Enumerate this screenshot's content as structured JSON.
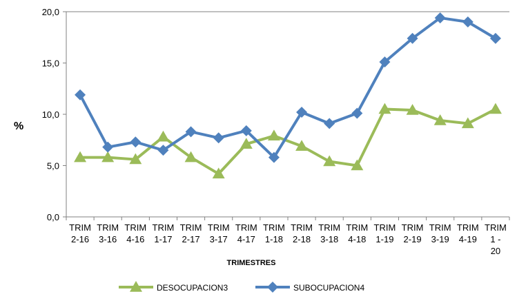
{
  "chart_data": {
    "type": "line",
    "title": "",
    "xlabel": "TRIMESTRES",
    "ylabel": "%",
    "ylim": [
      0,
      20
    ],
    "yticks": [
      "0,0",
      "5,0",
      "10,0",
      "15,0",
      "20,0"
    ],
    "grid": false,
    "legend_position": "bottom",
    "categories": [
      [
        "TRIM",
        "2-16"
      ],
      [
        "TRIM",
        "3-16"
      ],
      [
        "TRIM",
        "4-16"
      ],
      [
        "TRIM",
        "1-17"
      ],
      [
        "TRIM",
        "2-17"
      ],
      [
        "TRIM",
        "3-17"
      ],
      [
        "TRIM",
        "4-17"
      ],
      [
        "TRIM",
        "1-18"
      ],
      [
        "TRIM",
        "2-18"
      ],
      [
        "TRIM",
        "3-18"
      ],
      [
        "TRIM",
        "4-18"
      ],
      [
        "TRIM",
        "1-19"
      ],
      [
        "TRIM",
        "2-19"
      ],
      [
        "TRIM",
        "3-19"
      ],
      [
        "TRIM",
        "4-19"
      ],
      [
        "TRIM",
        "1 -",
        "20"
      ]
    ],
    "series": [
      {
        "name": "DESOCUPACION3",
        "color": "#9BBB59",
        "marker": "triangle",
        "values": [
          5.8,
          5.8,
          5.6,
          7.8,
          5.8,
          4.2,
          7.1,
          7.9,
          6.9,
          5.4,
          5.0,
          10.5,
          10.4,
          9.4,
          9.1,
          10.5
        ]
      },
      {
        "name": "SUBOCUPACION4",
        "color": "#4F81BD",
        "marker": "diamond",
        "values": [
          11.9,
          6.8,
          7.3,
          6.5,
          8.3,
          7.7,
          8.4,
          5.8,
          10.2,
          9.1,
          10.1,
          15.1,
          17.4,
          19.4,
          19.0,
          17.4
        ]
      }
    ]
  }
}
